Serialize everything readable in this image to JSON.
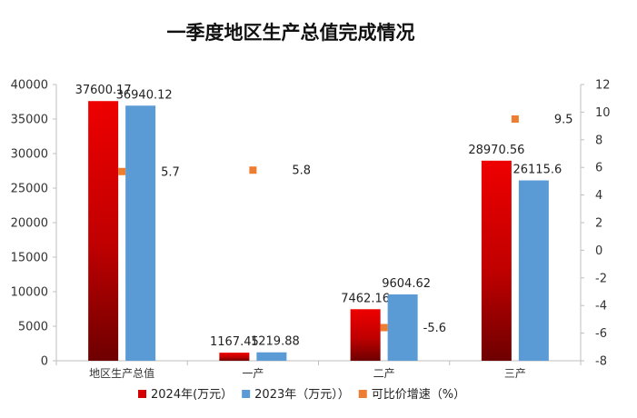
{
  "chart_data": {
    "type": "bar",
    "title": "一季度地区生产总值完成情况",
    "categories": [
      "地区生产总值",
      "一产",
      "二产",
      "三产"
    ],
    "series": [
      {
        "name": "2024年(万元）",
        "type": "bar",
        "axis": "left",
        "color": "#d40000",
        "values": [
          37600.17,
          1167.45,
          7462.16,
          28970.56
        ],
        "labels": [
          "37600.17",
          "1167.45",
          "7462.16",
          "28970.56"
        ]
      },
      {
        "name": "2023年（万元））",
        "type": "bar",
        "axis": "left",
        "color": "#5b9bd5",
        "values": [
          36940.12,
          1219.88,
          9604.62,
          26115.6
        ],
        "labels": [
          "36940.12",
          "1219.88",
          "9604.62",
          "26115.6"
        ]
      },
      {
        "name": "可比价增速（%）",
        "type": "scatter",
        "axis": "right",
        "color": "#ed7d31",
        "values": [
          5.7,
          5.8,
          -5.6,
          9.5
        ],
        "labels": [
          "5.7",
          "5.8",
          "-5.6",
          "9.5"
        ]
      }
    ],
    "y_left": {
      "min": 0,
      "max": 40000,
      "ticks": [
        "0",
        "5000",
        "10000",
        "15000",
        "20000",
        "25000",
        "30000",
        "35000",
        "40000"
      ]
    },
    "y_right": {
      "min": -8,
      "max": 12,
      "ticks": [
        "-8",
        "-6",
        "-4",
        "-2",
        "0",
        "2",
        "4",
        "6",
        "8",
        "10",
        "12"
      ]
    },
    "grid": false,
    "legend_position": "bottom"
  }
}
